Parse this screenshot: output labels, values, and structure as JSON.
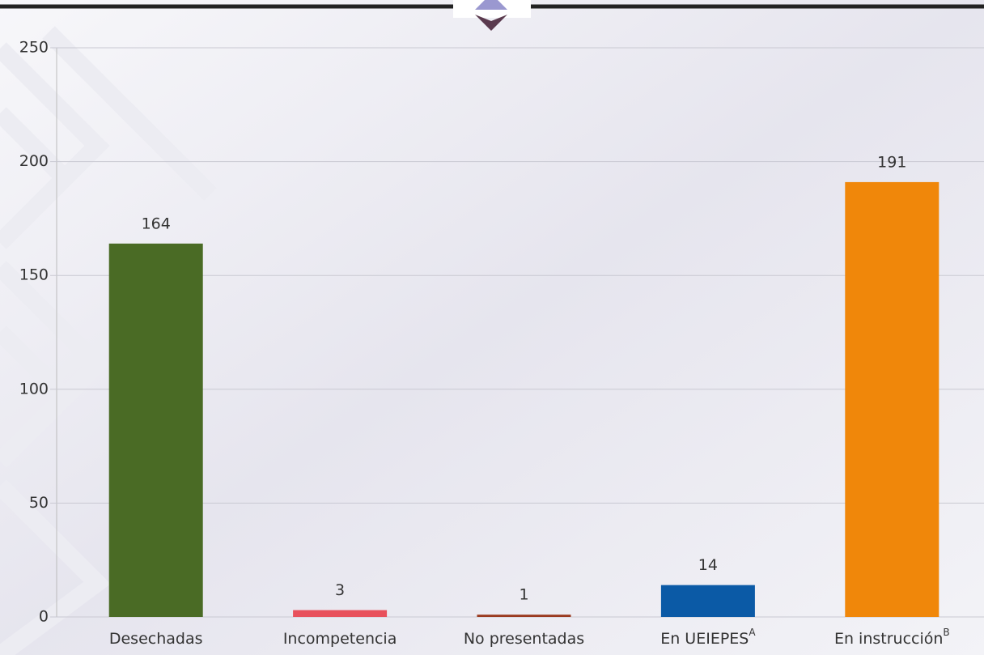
{
  "chart_data": {
    "type": "bar",
    "categories": [
      "Desechadas",
      "Incompetencia",
      "No presentadas",
      "En UEIEPES",
      "En instrucción"
    ],
    "category_notes": [
      null,
      null,
      null,
      "A",
      "B"
    ],
    "values": [
      164,
      3,
      1,
      14,
      191
    ],
    "colors": [
      "#4a6b25",
      "#e8515c",
      "#9a3a1f",
      "#0b5aa6",
      "#f0870a"
    ],
    "ylim": [
      0,
      250
    ],
    "yticks": [
      0,
      50,
      100,
      150,
      200,
      250
    ],
    "grid": true
  }
}
